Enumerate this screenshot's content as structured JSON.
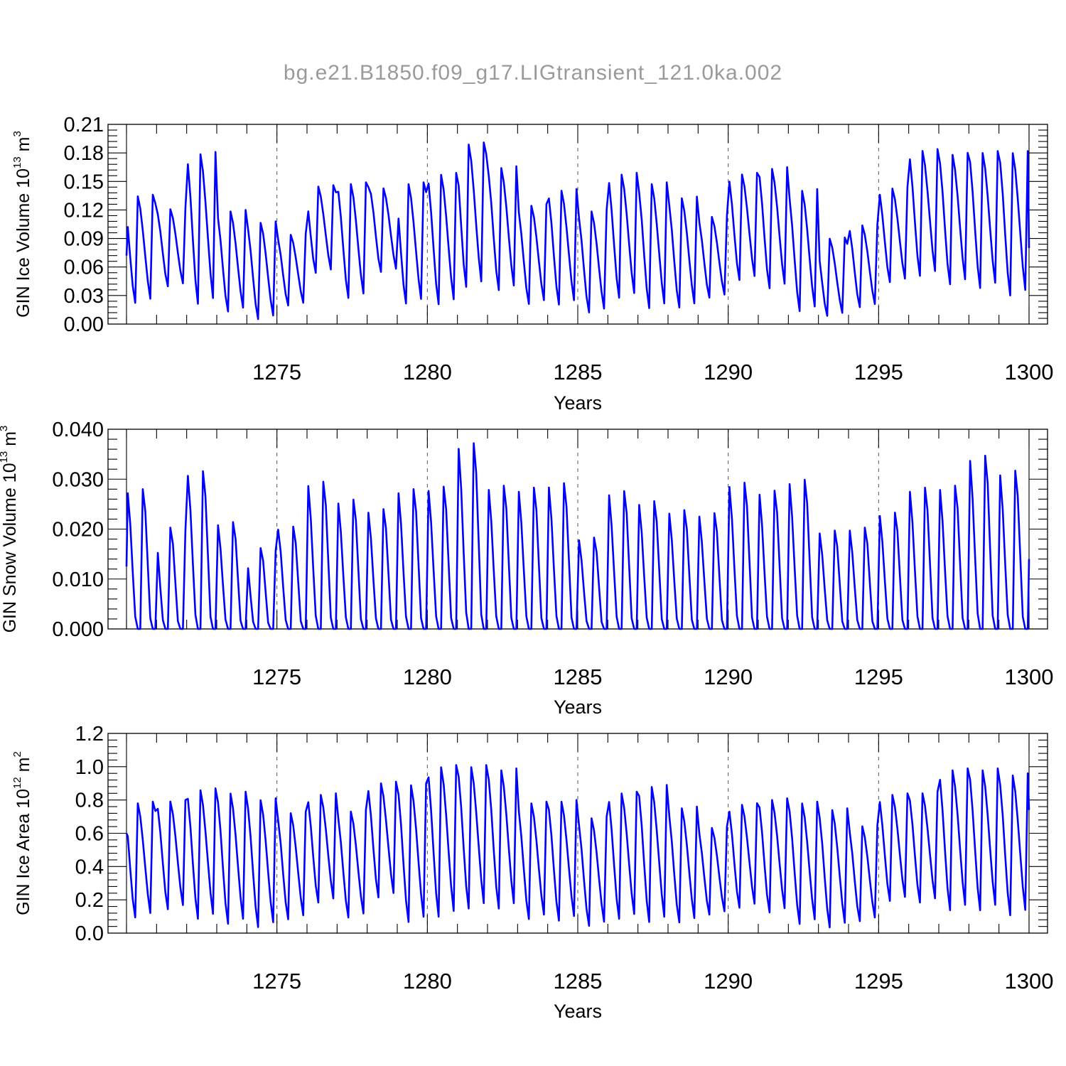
{
  "title": "bg.e21.B1850.f09_g17.LIGtransient_121.0ka.002",
  "chart_data": [
    {
      "type": "line",
      "name": "ice-volume",
      "ylabel": "GIN Ice Volume 10",
      "ylabel_exp": "13",
      "ylabel_unit": " m",
      "ylabel_unit_exp": "3",
      "xlabel": "Years",
      "xlim": [
        1270.0,
        1300.0
      ],
      "ylim": [
        0.0,
        0.21
      ],
      "xticks": [
        1275,
        1280,
        1285,
        1290,
        1295,
        1300
      ],
      "yticks": [
        "0.00",
        "0.03",
        "0.06",
        "0.09",
        "0.12",
        "0.15",
        "0.18",
        "0.21"
      ],
      "grid_x": true,
      "color": "#0000ff",
      "annual_peak_month": [
        10,
        11,
        11,
        11,
        11,
        11,
        10,
        11,
        12,
        10,
        11,
        10,
        11,
        11,
        11,
        11,
        11,
        11,
        11,
        11,
        11,
        11,
        11,
        10,
        11,
        11,
        11,
        11,
        11,
        11
      ],
      "annual_max": [
        0.136,
        0.122,
        0.181,
        0.12,
        0.108,
        0.095,
        0.146,
        0.149,
        0.144,
        0.149,
        0.159,
        0.191,
        0.166,
        0.126,
        0.142,
        0.12,
        0.159,
        0.149,
        0.134,
        0.114,
        0.159,
        0.165,
        0.142,
        0.091,
        0.105,
        0.144,
        0.184,
        0.18,
        0.182,
        0.182
      ],
      "annual_min": [
        0.02,
        0.038,
        0.018,
        0.011,
        0.003,
        0.018,
        0.052,
        0.025,
        0.053,
        0.019,
        0.018,
        0.036,
        0.033,
        0.019,
        0.018,
        0.01,
        0.025,
        0.014,
        0.015,
        0.026,
        0.044,
        0.035,
        0.011,
        0.007,
        0.016,
        0.042,
        0.048,
        0.039,
        0.035,
        0.027
      ],
      "start_value": 0.072,
      "end_value": 0.08
    },
    {
      "type": "line",
      "name": "snow-volume",
      "ylabel": "GIN Snow Volume 10",
      "ylabel_exp": "13",
      "ylabel_unit": " m",
      "ylabel_unit_exp": "3",
      "xlabel": "Years",
      "xlim": [
        1270.0,
        1300.0
      ],
      "ylim": [
        0.0,
        0.04
      ],
      "xticks": [
        1275,
        1280,
        1285,
        1290,
        1295,
        1300
      ],
      "yticks": [
        "0.000",
        "0.010",
        "0.020",
        "0.030",
        "0.040"
      ],
      "grid_x": true,
      "color": "#0000ff",
      "annual_peak_month": [
        6,
        5,
        6,
        6,
        5,
        6,
        6,
        6,
        6,
        6,
        6,
        6,
        6,
        6,
        6,
        6,
        6,
        6,
        6,
        6,
        6,
        6,
        6,
        6,
        6,
        6,
        6,
        6,
        6,
        6
      ],
      "annual_max": [
        0.028,
        0.0203,
        0.0316,
        0.0214,
        0.0162,
        0.0205,
        0.0295,
        0.0259,
        0.024,
        0.028,
        0.0285,
        0.0372,
        0.0287,
        0.0283,
        0.0292,
        0.0183,
        0.0276,
        0.0256,
        0.0238,
        0.0232,
        0.0293,
        0.0277,
        0.0299,
        0.0197,
        0.0203,
        0.0233,
        0.0283,
        0.0287,
        0.0347,
        0.0317
      ],
      "annual_min": [
        0.0,
        0.0,
        0.0,
        0.0,
        0.0,
        0.0,
        0.0,
        0.0,
        0.0,
        0.0,
        0.0,
        0.0,
        0.0,
        0.0,
        0.0,
        0.0,
        0.0,
        0.0,
        0.0,
        0.0,
        0.0,
        0.0,
        0.0,
        0.0,
        0.0,
        0.0,
        0.0,
        0.0,
        0.0,
        0.0
      ],
      "start_value": 0.0125,
      "end_value": 0.014
    },
    {
      "type": "line",
      "name": "ice-area",
      "ylabel": "GIN Ice Area 10",
      "ylabel_exp": "12",
      "ylabel_unit": " m",
      "ylabel_unit_exp": "2",
      "xlabel": "Years",
      "xlim": [
        1270.0,
        1300.0
      ],
      "ylim": [
        0.0,
        1.2
      ],
      "xticks": [
        1275,
        1280,
        1285,
        1290,
        1295,
        1300
      ],
      "yticks": [
        "0.0",
        "0.2",
        "0.4",
        "0.6",
        "0.8",
        "1.0",
        "1.2"
      ],
      "grid_x": true,
      "color": "#0000ff",
      "annual_peak_month": [
        10,
        11,
        11,
        11,
        11,
        11,
        11,
        11,
        11,
        11,
        11,
        11,
        11,
        11,
        11,
        11,
        11,
        11,
        11,
        11,
        11,
        11,
        11,
        11,
        11,
        11,
        11,
        11,
        11,
        11
      ],
      "annual_max": [
        0.79,
        0.8,
        0.87,
        0.85,
        0.81,
        0.73,
        0.84,
        0.74,
        0.91,
        0.9,
        1.01,
        1.01,
        0.99,
        0.79,
        0.8,
        0.7,
        0.85,
        0.89,
        0.76,
        0.64,
        0.78,
        0.81,
        0.79,
        0.75,
        0.65,
        0.84,
        0.85,
        0.99,
        0.99,
        0.96
      ],
      "annual_min": [
        0.08,
        0.13,
        0.07,
        0.04,
        0.02,
        0.07,
        0.17,
        0.08,
        0.2,
        0.05,
        0.08,
        0.13,
        0.13,
        0.07,
        0.06,
        0.03,
        0.07,
        0.05,
        0.05,
        0.1,
        0.14,
        0.11,
        0.04,
        0.02,
        0.06,
        0.18,
        0.17,
        0.12,
        0.12,
        0.09
      ],
      "start_value": 0.6,
      "end_value": 0.74
    }
  ]
}
